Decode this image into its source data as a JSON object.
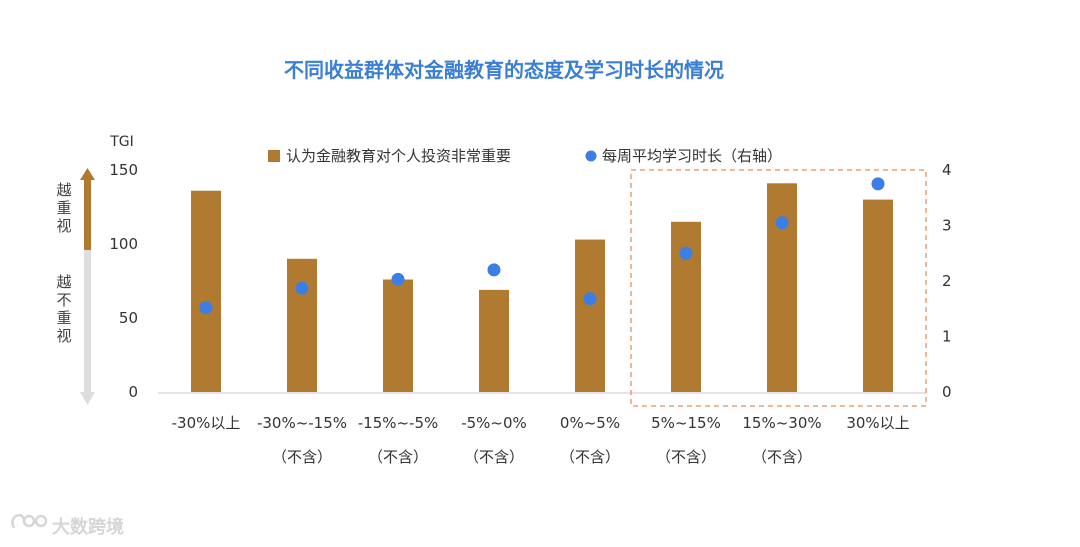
{
  "chart_data": {
    "type": "bar",
    "title": "不同收益群体对金融教育的态度及学习时长的情况",
    "categories": [
      [
        "-30%以上"
      ],
      [
        "-30%~-15%",
        "（不含）"
      ],
      [
        "-15%~-5%",
        "（不含）"
      ],
      [
        "-5%~0%",
        "（不含）"
      ],
      [
        "0%~5%",
        "（不含）"
      ],
      [
        "5%~15%",
        "（不含）"
      ],
      [
        "15%~30%",
        "（不含）"
      ],
      [
        "30%以上"
      ]
    ],
    "y_left": {
      "label": "TGI",
      "range": [
        0,
        150
      ],
      "ticks": [
        0,
        50,
        100,
        150
      ]
    },
    "y_right": {
      "range": [
        0,
        4
      ],
      "ticks": [
        0,
        1,
        2,
        3,
        4
      ]
    },
    "series": [
      {
        "name": "认为金融教育对个人投资非常重要",
        "kind": "bar",
        "axis": "left",
        "color": "#b07a30",
        "values": [
          136,
          90,
          76,
          69,
          103,
          115,
          141,
          130
        ]
      },
      {
        "name": "每周平均学习时长（右轴）",
        "kind": "scatter",
        "axis": "right",
        "color": "#3b7fe6",
        "values": [
          1.52,
          1.87,
          2.03,
          2.2,
          1.68,
          2.5,
          3.05,
          3.75
        ]
      }
    ],
    "highlight": {
      "from_category": 5,
      "to_category": 7,
      "style": "dashed",
      "color": "#e8a070"
    },
    "side_arrow": {
      "up_label": "越重视",
      "down_label": "越不重视",
      "up_color": "#b07a30",
      "down_color": "#dddddd"
    },
    "legend_position": "top",
    "grid": false
  },
  "watermark": "大数跨境"
}
